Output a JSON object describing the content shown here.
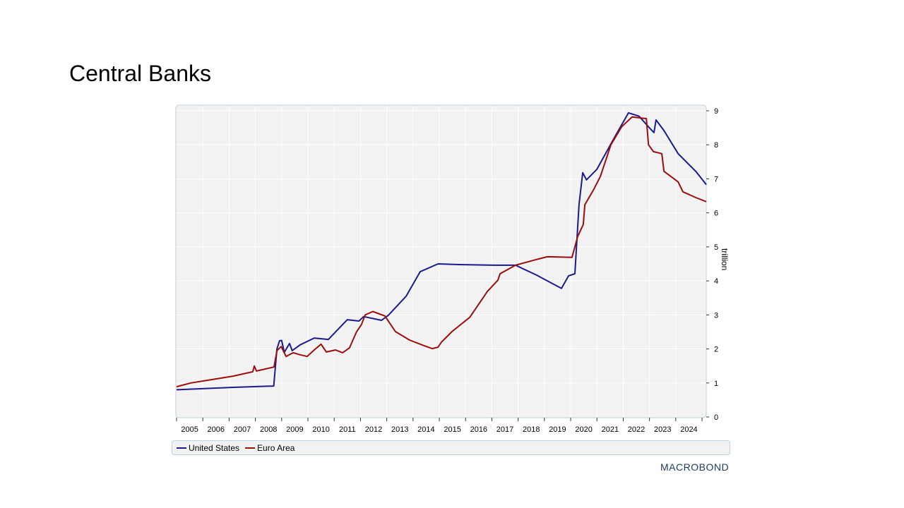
{
  "title": "Central Banks",
  "logo": "MACROBOND",
  "chart_data": {
    "type": "line",
    "title": "Central Banks",
    "ylabel": "trillion",
    "xlabel": "",
    "ylim": [
      0,
      9
    ],
    "xlim": [
      2005,
      2025.16
    ],
    "yticks": [
      0,
      1,
      2,
      3,
      4,
      5,
      6,
      7,
      8,
      9
    ],
    "xticks": [
      "2005",
      "2006",
      "2007",
      "2008",
      "2009",
      "2010",
      "2011",
      "2012",
      "2013",
      "2014",
      "2015",
      "2016",
      "2017",
      "2018",
      "2019",
      "2020",
      "2021",
      "2022",
      "2023",
      "2024"
    ],
    "grid": true,
    "legend_position": "bottom",
    "series": [
      {
        "name": "United States",
        "color": "#1a1a8c",
        "points": [
          [
            2005.0,
            0.8
          ],
          [
            2007.15,
            0.87
          ],
          [
            2008.7,
            0.91
          ],
          [
            2008.82,
            2.0
          ],
          [
            2008.92,
            2.24
          ],
          [
            2009.0,
            2.25
          ],
          [
            2009.1,
            1.9
          ],
          [
            2009.3,
            2.16
          ],
          [
            2009.4,
            1.95
          ],
          [
            2009.7,
            2.12
          ],
          [
            2010.24,
            2.32
          ],
          [
            2010.78,
            2.28
          ],
          [
            2011.05,
            2.5
          ],
          [
            2011.5,
            2.86
          ],
          [
            2011.94,
            2.82
          ],
          [
            2012.12,
            2.95
          ],
          [
            2012.8,
            2.84
          ],
          [
            2013.06,
            2.99
          ],
          [
            2013.74,
            3.55
          ],
          [
            2014.27,
            4.27
          ],
          [
            2014.95,
            4.5
          ],
          [
            2015.75,
            4.48
          ],
          [
            2017.1,
            4.46
          ],
          [
            2017.9,
            4.46
          ],
          [
            2018.7,
            4.17
          ],
          [
            2019.65,
            3.78
          ],
          [
            2019.92,
            4.15
          ],
          [
            2020.16,
            4.21
          ],
          [
            2020.32,
            6.25
          ],
          [
            2020.46,
            7.18
          ],
          [
            2020.6,
            6.97
          ],
          [
            2021.0,
            7.28
          ],
          [
            2021.67,
            8.22
          ],
          [
            2022.2,
            8.94
          ],
          [
            2022.6,
            8.84
          ],
          [
            2022.96,
            8.53
          ],
          [
            2023.17,
            8.36
          ],
          [
            2023.25,
            8.73
          ],
          [
            2023.55,
            8.42
          ],
          [
            2024.09,
            7.74
          ],
          [
            2024.76,
            7.22
          ],
          [
            2025.16,
            6.83
          ]
        ]
      },
      {
        "name": "Euro Area",
        "color": "#9b0d0d",
        "points": [
          [
            2005.0,
            0.89
          ],
          [
            2005.54,
            1.0
          ],
          [
            2006.34,
            1.1
          ],
          [
            2007.15,
            1.2
          ],
          [
            2007.9,
            1.33
          ],
          [
            2007.96,
            1.5
          ],
          [
            2008.04,
            1.35
          ],
          [
            2008.71,
            1.47
          ],
          [
            2008.82,
            1.95
          ],
          [
            2008.98,
            2.07
          ],
          [
            2009.17,
            1.78
          ],
          [
            2009.44,
            1.89
          ],
          [
            2009.7,
            1.83
          ],
          [
            2009.97,
            1.78
          ],
          [
            2010.24,
            1.97
          ],
          [
            2010.5,
            2.14
          ],
          [
            2010.7,
            1.91
          ],
          [
            2011.05,
            1.97
          ],
          [
            2011.32,
            1.89
          ],
          [
            2011.58,
            2.03
          ],
          [
            2011.85,
            2.5
          ],
          [
            2012.04,
            2.72
          ],
          [
            2012.18,
            3.0
          ],
          [
            2012.47,
            3.1
          ],
          [
            2012.93,
            2.97
          ],
          [
            2013.33,
            2.51
          ],
          [
            2013.87,
            2.26
          ],
          [
            2014.4,
            2.1
          ],
          [
            2014.73,
            2.01
          ],
          [
            2014.95,
            2.05
          ],
          [
            2015.08,
            2.2
          ],
          [
            2015.48,
            2.51
          ],
          [
            2016.16,
            2.93
          ],
          [
            2016.83,
            3.69
          ],
          [
            2017.23,
            4.02
          ],
          [
            2017.31,
            4.21
          ],
          [
            2017.9,
            4.46
          ],
          [
            2018.71,
            4.63
          ],
          [
            2019.11,
            4.71
          ],
          [
            2020.05,
            4.69
          ],
          [
            2020.27,
            5.31
          ],
          [
            2020.48,
            5.66
          ],
          [
            2020.54,
            6.24
          ],
          [
            2020.86,
            6.66
          ],
          [
            2021.13,
            7.07
          ],
          [
            2021.53,
            8.0
          ],
          [
            2021.94,
            8.53
          ],
          [
            2022.34,
            8.82
          ],
          [
            2022.88,
            8.77
          ],
          [
            2022.96,
            8.0
          ],
          [
            2023.15,
            7.8
          ],
          [
            2023.47,
            7.74
          ],
          [
            2023.55,
            7.22
          ],
          [
            2024.09,
            6.91
          ],
          [
            2024.27,
            6.62
          ],
          [
            2024.76,
            6.45
          ],
          [
            2025.16,
            6.33
          ]
        ]
      }
    ]
  }
}
